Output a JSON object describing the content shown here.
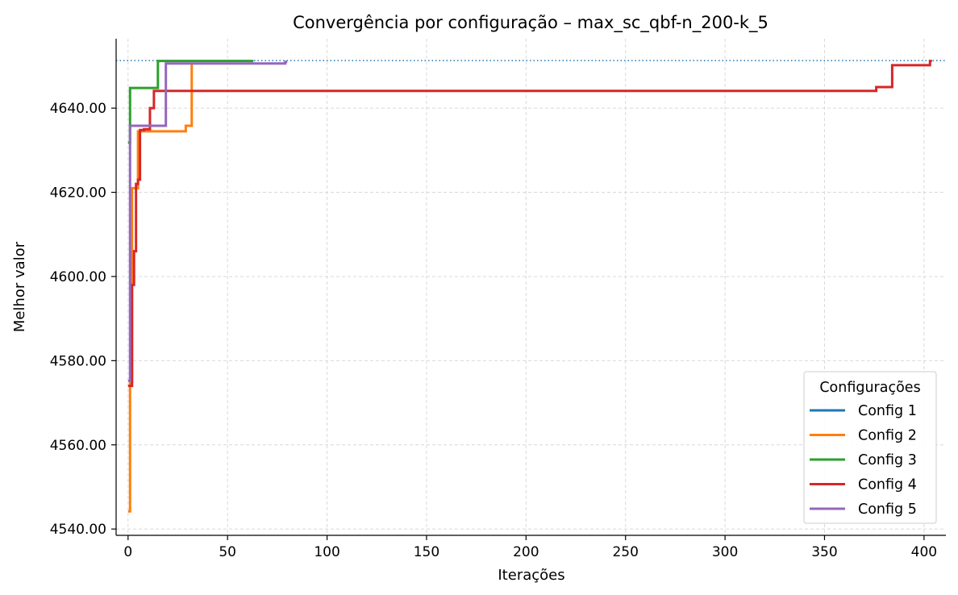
{
  "chart_data": {
    "type": "line",
    "title": "Convergência por configuração – max_sc_qbf-n_200-k_5",
    "xlabel": "Iterações",
    "ylabel": "Melhor valor",
    "xlim": [
      -6,
      411
    ],
    "ylim": [
      4538.5,
      4656.5
    ],
    "xticks": [
      0,
      50,
      100,
      150,
      200,
      250,
      300,
      350,
      400
    ],
    "xtick_labels": [
      "0",
      "50",
      "100",
      "150",
      "200",
      "250",
      "300",
      "350",
      "400"
    ],
    "yticks": [
      4540,
      4560,
      4580,
      4600,
      4620,
      4640
    ],
    "ytick_labels": [
      "4540.00",
      "4560.00",
      "4580.00",
      "4600.00",
      "4620.00",
      "4640.00"
    ],
    "grid": true,
    "reference_line": {
      "y": 4651.3,
      "style": "dotted",
      "color": "#1f77b4"
    },
    "legend": {
      "title": "Configurações",
      "placement": "lower-right"
    },
    "step": "post",
    "series": [
      {
        "name": "Config 1",
        "color": "#1f77b4",
        "x": [],
        "y": []
      },
      {
        "name": "Config 2",
        "color": "#ff7f0e",
        "x": [
          0,
          1,
          2,
          5,
          6,
          29,
          32,
          32
        ],
        "y": [
          4544.2,
          4575.0,
          4621.0,
          4634.5,
          4634.5,
          4635.8,
          4650.8,
          4650.8
        ]
      },
      {
        "name": "Config 3",
        "color": "#2ca02c",
        "x": [
          0,
          1,
          15,
          63
        ],
        "y": [
          4631.8,
          4644.8,
          4651.2,
          4651.2
        ]
      },
      {
        "name": "Config 4",
        "color": "#d62728",
        "x": [
          0,
          2,
          3,
          4,
          5,
          6,
          8,
          11,
          13,
          376,
          384,
          403,
          404
        ],
        "y": [
          4574.0,
          4598.0,
          4606.0,
          4622.0,
          4623.0,
          4634.8,
          4635.0,
          4640.0,
          4644.1,
          4645.0,
          4650.2,
          4651.2,
          4651.2
        ]
      },
      {
        "name": "Config 5",
        "color": "#9467bd",
        "x": [
          0,
          1,
          19,
          79,
          80
        ],
        "y": [
          4575.2,
          4635.8,
          4650.6,
          4651.0,
          4651.0
        ]
      }
    ]
  }
}
